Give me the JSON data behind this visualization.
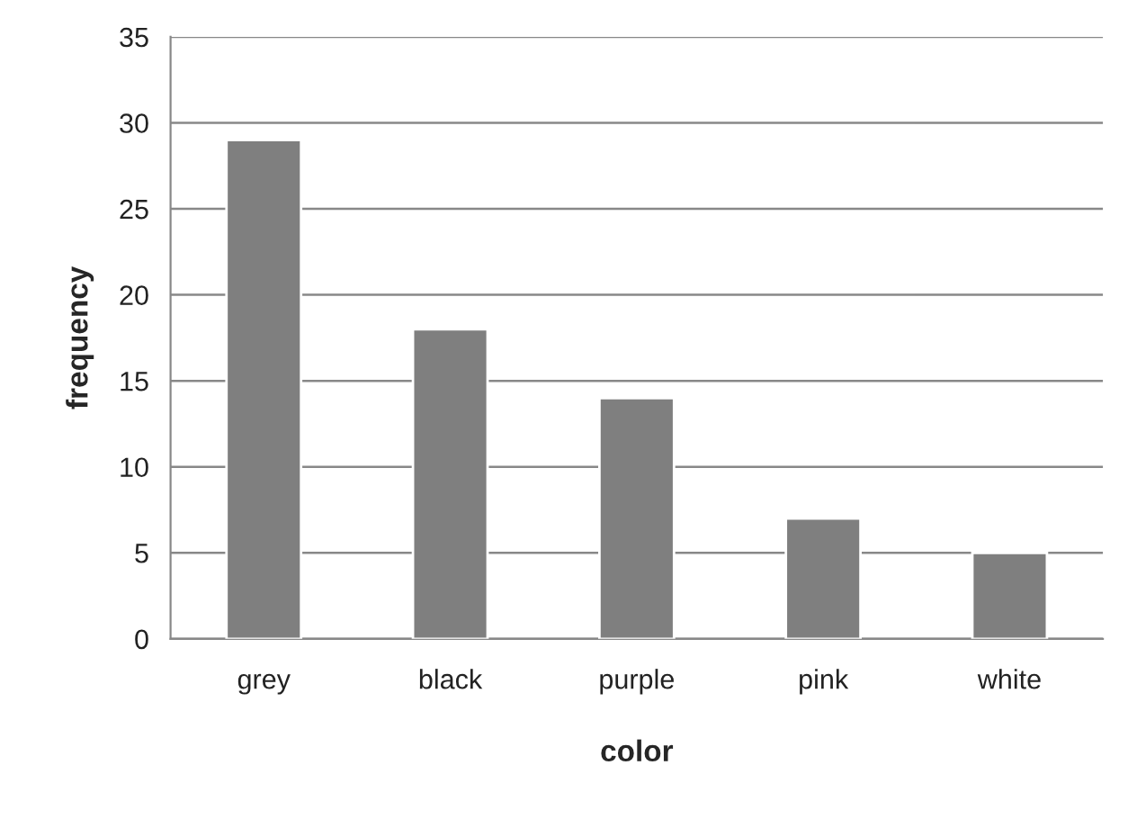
{
  "chart_data": {
    "type": "bar",
    "xlabel": "color",
    "ylabel": "frequency",
    "categories": [
      "grey",
      "black",
      "purple",
      "pink",
      "white"
    ],
    "values": [
      29,
      18,
      14,
      7,
      5
    ],
    "color": "#7f7f7f",
    "ylim": [
      0,
      35
    ],
    "yticks": [
      0,
      5,
      10,
      15,
      20,
      25,
      30,
      35
    ],
    "grid": "y",
    "legend": false
  }
}
